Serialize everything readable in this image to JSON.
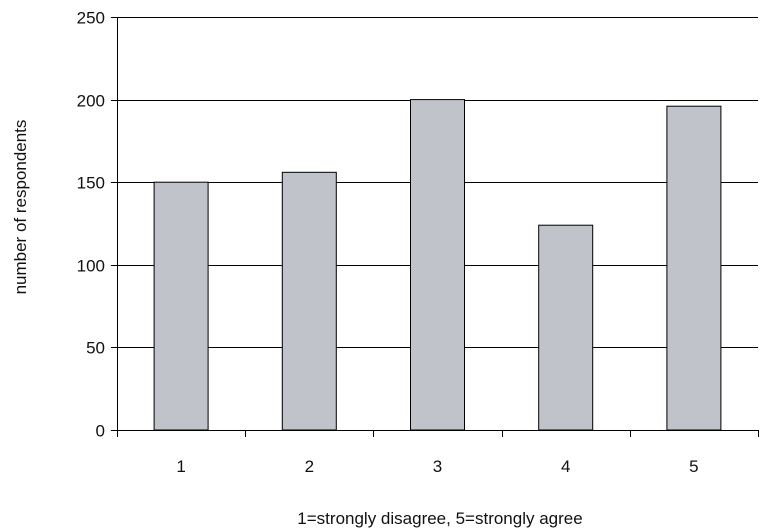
{
  "chart_data": {
    "type": "bar",
    "title": "",
    "xlabel": "1=strongly disagree, 5=strongly agree",
    "ylabel": "number of respondents",
    "categories": [
      "1",
      "2",
      "3",
      "4",
      "5"
    ],
    "values": [
      150,
      156,
      200,
      124,
      196
    ],
    "ylim": [
      0,
      250
    ],
    "yticks": [
      0,
      50,
      100,
      150,
      200,
      250
    ],
    "grid": true,
    "legend": "none",
    "colors": {
      "bar_fill": "#c1c3cb",
      "bar_stroke": "#000000",
      "grid": "#000000",
      "axis": "#000000"
    }
  }
}
